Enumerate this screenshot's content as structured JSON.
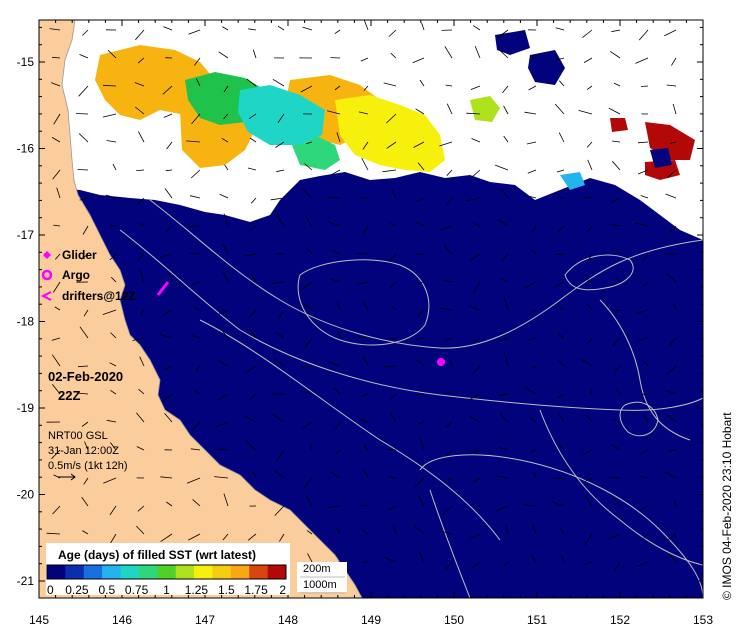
{
  "map": {
    "x_ticks": [
      "145",
      "146",
      "147",
      "148",
      "149",
      "150",
      "151",
      "152",
      "153"
    ],
    "y_ticks": [
      "-15",
      "-16",
      "-17",
      "-18",
      "-19",
      "-20",
      "-21"
    ],
    "colors": {
      "land": "#fbcc9c",
      "ocean_recent": "#02037c",
      "cloud_gap": "#ffffff",
      "contour": "#bdbdbd"
    }
  },
  "legend": {
    "items": [
      {
        "label": "Glider",
        "color": "#ff00ff",
        "icon": "diamond-icon"
      },
      {
        "label": "Argo",
        "color": "#ff00ff",
        "icon": "argo-circle-icon"
      },
      {
        "label": "drifters@12Z",
        "color": "#ff00ff",
        "icon": "drifter-arrow-icon"
      }
    ]
  },
  "timestamp": {
    "date": "02-Feb-2020",
    "time": "22Z"
  },
  "info": {
    "line1": "NRT00 GSL",
    "line2": "31-Jan 12:00Z",
    "line3": "0.5m/s (1kt 12h)"
  },
  "colorbar": {
    "title": "Age (days) of filled SST (wrt latest)",
    "labels": [
      "0",
      "0.25",
      "0.5",
      "0.75",
      "1",
      "1.25",
      "1.5",
      "1.75",
      "2"
    ],
    "colors": [
      "#02037c",
      "#0a2fae",
      "#1a6fe0",
      "#23b4f0",
      "#1fd6c6",
      "#2ed87a",
      "#4fd12a",
      "#aee21c",
      "#f6f00c",
      "#f7cd12",
      "#f7a814",
      "#d9450e",
      "#b20808"
    ]
  },
  "depth_legend": {
    "line1": "200m",
    "line2": "1000m"
  },
  "credit": "© IMOS 04-Feb-2020 23:10 Hobart"
}
